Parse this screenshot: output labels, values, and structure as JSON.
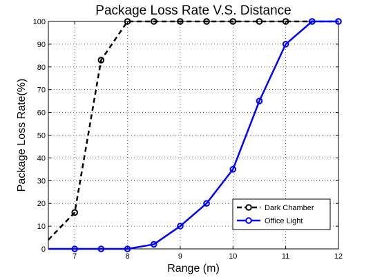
{
  "chart_data": {
    "type": "line",
    "title": "Package Loss Rate V.S. Distance",
    "xlabel": "Range (m)",
    "ylabel": "Package Loss Rate(%)",
    "xlim": [
      6.5,
      12
    ],
    "ylim": [
      0,
      100
    ],
    "xticks": [
      7,
      8,
      9,
      10,
      11,
      12
    ],
    "yticks": [
      0,
      10,
      20,
      30,
      40,
      50,
      60,
      70,
      80,
      90,
      100
    ],
    "grid": true,
    "legend_position": "bottom-right",
    "series": [
      {
        "name": "Dark Chamber",
        "color": "#000000",
        "line_style": "dashed",
        "marker": "circle",
        "x": [
          6.5,
          7,
          7.5,
          8,
          8.5,
          9,
          9.5,
          10,
          10.5,
          11,
          11.5,
          12
        ],
        "y": [
          4,
          16,
          83,
          100,
          100,
          100,
          100,
          100,
          100,
          100,
          100,
          100
        ]
      },
      {
        "name": "Office Light",
        "color": "#0000ff",
        "line_style": "solid",
        "marker": "circle",
        "x": [
          6.5,
          7,
          7.5,
          8,
          8.5,
          9,
          9.5,
          10,
          10.5,
          11,
          11.5,
          12
        ],
        "y": [
          0,
          0,
          0,
          0,
          2,
          10,
          20,
          35,
          65,
          90,
          100,
          100
        ]
      }
    ]
  }
}
